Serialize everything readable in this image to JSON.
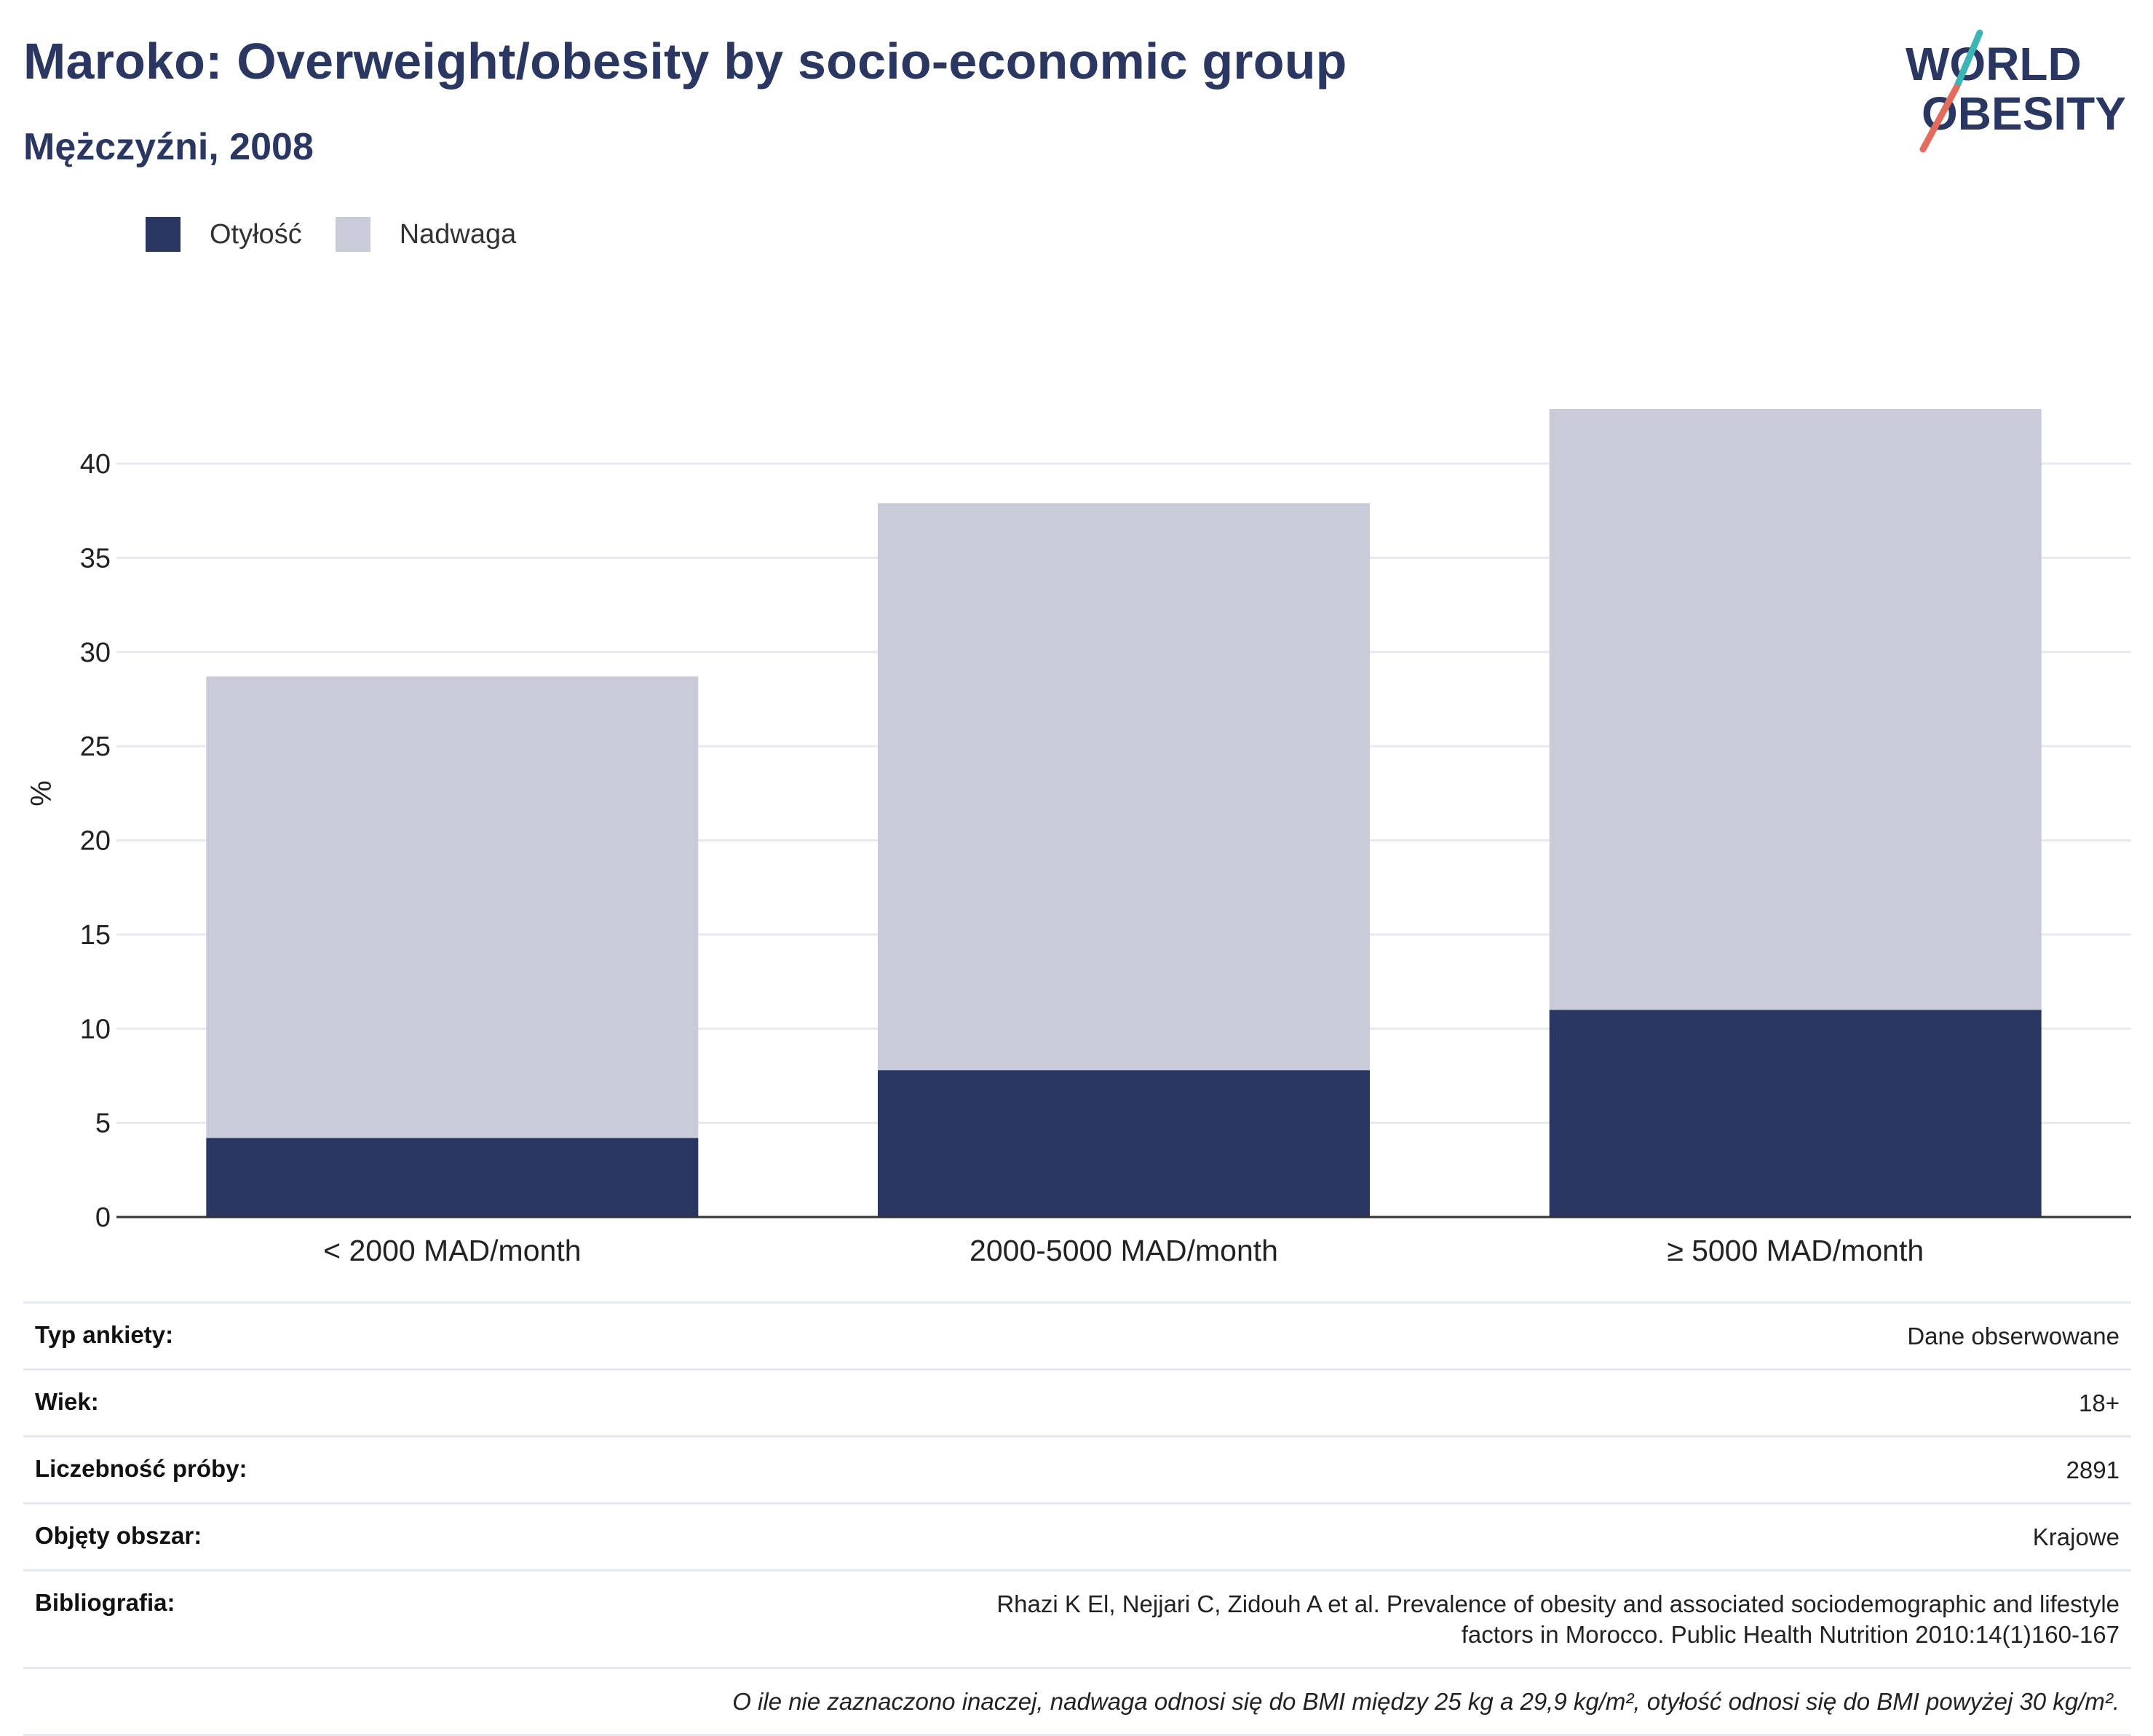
{
  "header": {
    "title": "Maroko: Overweight/obesity by socio-economic group",
    "subtitle": "Mężczyźni, 2008",
    "logo_text": [
      "WORLD",
      "OBESITY"
    ]
  },
  "colors": {
    "obesity": "#2b3763",
    "overweight": "#c9ccd8",
    "title": "#2b3763",
    "logo_teal": "#3bb6b5",
    "logo_coral": "#e46c5c",
    "grid": "#e6e9ef"
  },
  "legend": [
    {
      "label": "Otyłość",
      "color": "#2b3763"
    },
    {
      "label": "Nadwaga",
      "color": "#c9ccd8"
    }
  ],
  "chart_data": {
    "type": "bar",
    "stacked": true,
    "categories": [
      "< 2000 MAD/month",
      "2000-5000 MAD/month",
      "≥ 5000 MAD/month"
    ],
    "series": [
      {
        "name": "Otyłość",
        "values": [
          4.2,
          7.8,
          11.0
        ]
      },
      {
        "name": "Nadwaga",
        "values": [
          24.5,
          30.1,
          31.9
        ]
      }
    ],
    "ylabel": "%",
    "ylim": [
      0,
      45
    ],
    "yticks": [
      0,
      5,
      10,
      15,
      20,
      25,
      30,
      35,
      40
    ],
    "grid": true,
    "legend_position": "top-left"
  },
  "info": [
    {
      "label": "Typ ankiety:",
      "value": "Dane obserwowane"
    },
    {
      "label": "Wiek:",
      "value": "18+"
    },
    {
      "label": "Liczebność próby:",
      "value": "2891"
    },
    {
      "label": "Objęty obszar:",
      "value": "Krajowe"
    },
    {
      "label": "Bibliografia:",
      "value": "Rhazi K El, Nejjari C, Zidouh A et al. Prevalence of obesity and associated sociodemographic and lifestyle factors in Morocco. Public Health Nutrition 2010:14(1)160-167"
    }
  ],
  "footnote": "O ile nie zaznaczono inaczej, nadwaga odnosi się do BMI między 25 kg a 29,9 kg/m², otyłość odnosi się do BMI powyżej 30 kg/m²."
}
